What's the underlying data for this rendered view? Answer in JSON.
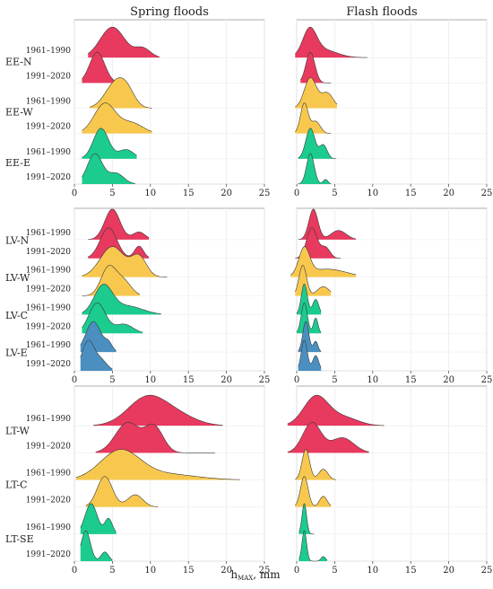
{
  "column_titles": [
    "Spring floods",
    "Flash floods"
  ],
  "period_labels": [
    "1961–1990",
    "1991–2020"
  ],
  "x_label": "h",
  "x_label_sub": "MAX",
  "x_label_unit": ", mm",
  "colors": {
    "red": "#E8395F",
    "yellow": "#F8C84E",
    "green": "#1BCC8E",
    "blue": "#4A8FC0"
  },
  "chart_data": {
    "type": "area",
    "xlim": [
      0,
      25
    ],
    "x_ticks": [
      0,
      5,
      10,
      15,
      20,
      25
    ],
    "x_tick_labels": [
      "0",
      "5",
      "10",
      "15",
      "20",
      "25"
    ],
    "grid": true,
    "panels": [
      {
        "groups": [
          {
            "label": "EE-N",
            "color": "red",
            "spring": [
              {
                "period": "1961–1990",
                "peaks": [
                  [
                    5.0,
                    1.6,
                    1.0
                  ],
                  [
                    9.0,
                    1.0,
                    0.3
                  ]
                ],
                "xmin": 1.8,
                "xmax": 11.2
              },
              {
                "period": "1991–2020",
                "peaks": [
                  [
                    3.0,
                    1.0,
                    1.0
                  ]
                ],
                "xmin": 1.0,
                "xmax": 6.5
              }
            ],
            "flash": [
              {
                "period": "1961–1990",
                "peaks": [
                  [
                    1.7,
                    0.9,
                    1.0
                  ],
                  [
                    3.5,
                    1.8,
                    0.3
                  ]
                ],
                "xmin": -0.2,
                "xmax": 9.3
              },
              {
                "period": "1991–2020",
                "peaks": [
                  [
                    1.8,
                    0.6,
                    1.0
                  ]
                ],
                "xmin": 0.5,
                "xmax": 4.5
              }
            ]
          },
          {
            "label": "EE-W",
            "color": "yellow",
            "spring": [
              {
                "period": "1961–1990",
                "peaks": [
                  [
                    5.5,
                    1.4,
                    1.0
                  ],
                  [
                    7.0,
                    1.0,
                    0.4
                  ]
                ],
                "xmin": 2.0,
                "xmax": 10.2
              },
              {
                "period": "1991–2020",
                "peaks": [
                  [
                    4.0,
                    1.4,
                    1.0
                  ],
                  [
                    7.5,
                    1.5,
                    0.35
                  ]
                ],
                "xmin": 1.0,
                "xmax": 10.2
              }
            ],
            "flash": [
              {
                "period": "1961–1990",
                "peaks": [
                  [
                    1.8,
                    0.8,
                    1.0
                  ],
                  [
                    4.0,
                    0.8,
                    0.5
                  ]
                ],
                "xmin": -0.2,
                "xmax": 5.3
              },
              {
                "period": "1991–2020",
                "peaks": [
                  [
                    1.0,
                    0.5,
                    1.0
                  ],
                  [
                    2.5,
                    0.6,
                    0.4
                  ]
                ],
                "xmin": -0.2,
                "xmax": 4.5
              }
            ]
          },
          {
            "label": "EE-E",
            "color": "green",
            "spring": [
              {
                "period": "1961–1990",
                "peaks": [
                  [
                    3.5,
                    1.0,
                    1.0
                  ],
                  [
                    6.8,
                    1.0,
                    0.3
                  ]
                ],
                "xmin": 1.0,
                "xmax": 8.2
              },
              {
                "period": "1991–2020",
                "peaks": [
                  [
                    2.7,
                    1.0,
                    1.0
                  ],
                  [
                    5.5,
                    1.0,
                    0.35
                  ]
                ],
                "xmin": 1.0,
                "xmax": 8.0
              }
            ],
            "flash": [
              {
                "period": "1961–1990",
                "peaks": [
                  [
                    1.8,
                    0.6,
                    1.0
                  ],
                  [
                    3.5,
                    0.5,
                    0.45
                  ]
                ],
                "xmin": 0.2,
                "xmax": 5.2
              },
              {
                "period": "1991–2020",
                "peaks": [
                  [
                    1.8,
                    0.5,
                    1.0
                  ],
                  [
                    3.8,
                    0.3,
                    0.15
                  ]
                ],
                "xmin": 0.2,
                "xmax": 4.5
              }
            ]
          }
        ]
      },
      {
        "groups": [
          {
            "label": "LV-N",
            "color": "red",
            "spring": [
              {
                "period": "1961–1990",
                "peaks": [
                  [
                    5.0,
                    1.0,
                    1.0
                  ],
                  [
                    8.5,
                    0.8,
                    0.25
                  ]
                ],
                "xmin": 1.8,
                "xmax": 9.8
              },
              {
                "period": "1991–2020",
                "peaks": [
                  [
                    4.5,
                    1.1,
                    1.0
                  ],
                  [
                    8.5,
                    0.6,
                    0.4
                  ]
                ],
                "xmin": 1.8,
                "xmax": 9.8
              }
            ],
            "flash": [
              {
                "period": "1961–1990",
                "peaks": [
                  [
                    2.2,
                    0.6,
                    1.0
                  ],
                  [
                    5.5,
                    1.0,
                    0.3
                  ]
                ],
                "xmin": 0.2,
                "xmax": 7.8
              },
              {
                "period": "1991–2020",
                "peaks": [
                  [
                    2.0,
                    0.7,
                    1.0
                  ],
                  [
                    3.8,
                    0.6,
                    0.35
                  ]
                ],
                "xmin": -0.2,
                "xmax": 5.8
              }
            ]
          },
          {
            "label": "LV-W",
            "color": "yellow",
            "spring": [
              {
                "period": "1961–1990",
                "peaks": [
                  [
                    5.0,
                    1.6,
                    1.0
                  ],
                  [
                    8.5,
                    1.0,
                    0.65
                  ]
                ],
                "xmin": 1.0,
                "xmax": 12.2
              },
              {
                "period": "1991–2020",
                "peaks": [
                  [
                    4.5,
                    1.0,
                    1.0
                  ],
                  [
                    6.5,
                    1.0,
                    0.5
                  ]
                ],
                "xmin": 1.0,
                "xmax": 8.6
              }
            ],
            "flash": [
              {
                "period": "1961–1990",
                "peaks": [
                  [
                    1.0,
                    0.7,
                    1.0
                  ],
                  [
                    4.0,
                    2.5,
                    0.3
                  ]
                ],
                "xmin": -0.8,
                "xmax": 7.8
              },
              {
                "period": "1991–2020",
                "peaks": [
                  [
                    0.8,
                    0.5,
                    1.0
                  ],
                  [
                    3.5,
                    0.8,
                    0.3
                  ]
                ],
                "xmin": -0.2,
                "xmax": 4.5
              }
            ]
          },
          {
            "label": "LV-C",
            "color": "green",
            "spring": [
              {
                "period": "1961–1990",
                "peaks": [
                  [
                    3.8,
                    1.2,
                    1.0
                  ],
                  [
                    7.0,
                    2.0,
                    0.3
                  ]
                ],
                "xmin": 1.0,
                "xmax": 11.4
              },
              {
                "period": "1991–2020",
                "peaks": [
                  [
                    3.0,
                    1.1,
                    1.0
                  ],
                  [
                    6.5,
                    1.2,
                    0.3
                  ]
                ],
                "xmin": 1.0,
                "xmax": 9.0
              }
            ],
            "flash": [
              {
                "period": "1961–1990",
                "peaks": [
                  [
                    1.0,
                    0.4,
                    1.0
                  ],
                  [
                    2.5,
                    0.4,
                    0.5
                  ]
                ],
                "xmin": 0.0,
                "xmax": 3.2
              },
              {
                "period": "1991–2020",
                "peaks": [
                  [
                    1.0,
                    0.4,
                    1.0
                  ],
                  [
                    2.5,
                    0.3,
                    0.5
                  ]
                ],
                "xmin": 0.0,
                "xmax": 3.2
              }
            ]
          },
          {
            "label": "LV-E",
            "color": "blue",
            "spring": [
              {
                "period": "1961–1990",
                "peaks": [
                  [
                    2.5,
                    1.0,
                    1.0
                  ],
                  [
                    4.5,
                    0.5,
                    0.25
                  ]
                ],
                "xmin": 0.8,
                "xmax": 5.5
              },
              {
                "period": "1991–2020",
                "peaks": [
                  [
                    1.8,
                    0.8,
                    1.0
                  ],
                  [
                    3.5,
                    0.8,
                    0.35
                  ]
                ],
                "xmin": 0.8,
                "xmax": 5.0
              }
            ],
            "flash": [
              {
                "period": "1961–1990",
                "peaks": [
                  [
                    1.2,
                    0.4,
                    1.0
                  ],
                  [
                    2.5,
                    0.3,
                    0.35
                  ]
                ],
                "xmin": 0.2,
                "xmax": 3.2
              },
              {
                "period": "1991–2020",
                "peaks": [
                  [
                    1.0,
                    0.4,
                    1.0
                  ],
                  [
                    2.5,
                    0.4,
                    0.5
                  ]
                ],
                "xmin": 0.2,
                "xmax": 3.2
              }
            ]
          }
        ]
      },
      {
        "groups": [
          {
            "label": "LT-W",
            "color": "red",
            "spring": [
              {
                "period": "1961–1990",
                "peaks": [
                  [
                    9.5,
                    2.5,
                    1.0
                  ],
                  [
                    13.5,
                    2.5,
                    0.35
                  ]
                ],
                "xmin": 2.5,
                "xmax": 19.5
              },
              {
                "period": "1991–2020",
                "peaks": [
                  [
                    7.0,
                    1.6,
                    1.0
                  ],
                  [
                    10.5,
                    1.2,
                    0.85
                  ]
                ],
                "xmin": 2.8,
                "xmax": 18.5
              }
            ],
            "flash": [
              {
                "period": "1961–1990",
                "peaks": [
                  [
                    2.5,
                    1.6,
                    1.0
                  ],
                  [
                    6.0,
                    2.0,
                    0.3
                  ]
                ],
                "xmin": -1.2,
                "xmax": 11.5
              },
              {
                "period": "1991–2020",
                "peaks": [
                  [
                    2.0,
                    1.2,
                    1.0
                  ],
                  [
                    6.0,
                    1.5,
                    0.5
                  ]
                ],
                "xmin": -1.2,
                "xmax": 9.5
              }
            ]
          },
          {
            "label": "LT-C",
            "color": "yellow",
            "spring": [
              {
                "period": "1961–1990",
                "peaks": [
                  [
                    6.0,
                    2.6,
                    1.0
                  ],
                  [
                    12.0,
                    4.0,
                    0.2
                  ]
                ],
                "xmin": 0.2,
                "xmax": 21.8
              },
              {
                "period": "1991–2020",
                "peaks": [
                  [
                    4.0,
                    1.0,
                    1.0
                  ],
                  [
                    8.0,
                    1.0,
                    0.4
                  ]
                ],
                "xmin": 1.5,
                "xmax": 11.0
              }
            ],
            "flash": [
              {
                "period": "1961–1990",
                "peaks": [
                  [
                    1.2,
                    0.5,
                    1.0
                  ],
                  [
                    3.5,
                    0.6,
                    0.35
                  ]
                ],
                "xmin": -0.2,
                "xmax": 5.2
              },
              {
                "period": "1991–2020",
                "peaks": [
                  [
                    1.0,
                    0.5,
                    1.0
                  ],
                  [
                    3.5,
                    0.5,
                    0.35
                  ]
                ],
                "xmin": -0.2,
                "xmax": 4.5
              }
            ]
          },
          {
            "label": "LT-SE",
            "color": "green",
            "spring": [
              {
                "period": "1961–1990",
                "peaks": [
                  [
                    2.2,
                    0.8,
                    1.0
                  ],
                  [
                    4.5,
                    0.5,
                    0.5
                  ]
                ],
                "xmin": 0.8,
                "xmax": 5.5
              },
              {
                "period": "1991–2020",
                "peaks": [
                  [
                    1.5,
                    0.6,
                    1.0
                  ],
                  [
                    4.0,
                    0.5,
                    0.3
                  ]
                ],
                "xmin": 0.8,
                "xmax": 5.0
              }
            ],
            "flash": [
              {
                "period": "1961–1990",
                "peaks": [
                  [
                    1.0,
                    0.3,
                    1.0
                  ]
                ],
                "xmin": 0.3,
                "xmax": 2.3
              },
              {
                "period": "1991–2020",
                "peaks": [
                  [
                    1.0,
                    0.3,
                    1.0
                  ],
                  [
                    3.5,
                    0.3,
                    0.15
                  ]
                ],
                "xmin": 0.3,
                "xmax": 4.0
              }
            ]
          }
        ]
      }
    ]
  }
}
